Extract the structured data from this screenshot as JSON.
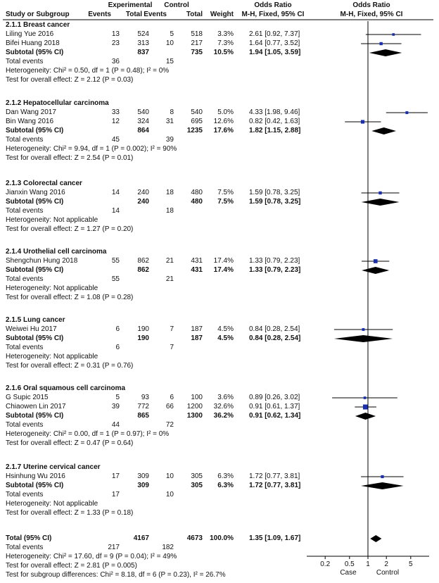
{
  "header": {
    "experimental": "Experimental",
    "control": "Control",
    "odds_ratio": "Odds Ratio",
    "study": "Study or Subgroup",
    "events": "Events",
    "total": "Total",
    "weight": "Weight",
    "method": "M-H, Fixed, 95% CI"
  },
  "groups": [
    {
      "title": "2.1.1 Breast cancer",
      "studies": [
        {
          "name": "Liling Yue 2016",
          "e_events": "13",
          "e_total": "524",
          "c_events": "5",
          "c_total": "518",
          "weight": "3.3%",
          "ci": "2.61 [0.92, 7.37]",
          "or": 2.61,
          "lo": 0.92,
          "hi": 7.37,
          "w": 3.3
        },
        {
          "name": "Bifei Huang 2018",
          "e_events": "23",
          "e_total": "313",
          "c_events": "10",
          "c_total": "217",
          "weight": "7.3%",
          "ci": "1.64 [0.77, 3.52]",
          "or": 1.64,
          "lo": 0.77,
          "hi": 3.52,
          "w": 7.3
        }
      ],
      "subtotal": {
        "label": "Subtotal (95% CI)",
        "e_total": "837",
        "c_total": "735",
        "weight": "10.5%",
        "ci": "1.94 [1.05, 3.59]",
        "or": 1.94,
        "lo": 1.05,
        "hi": 3.59
      },
      "total_events": {
        "label": "Total events",
        "e": "36",
        "c": "15"
      },
      "heterogeneity": "Heterogeneity: Chi² = 0.50, df = 1 (P = 0.48); I² = 0%",
      "overall": "Test for overall effect: Z = 2.12 (P = 0.03)"
    },
    {
      "title": "2.1.2 Hepatocellular carcinoma",
      "studies": [
        {
          "name": "Dan Wang 2017",
          "e_events": "33",
          "e_total": "540",
          "c_events": "8",
          "c_total": "540",
          "weight": "5.0%",
          "ci": "4.33 [1.98, 9.46]",
          "or": 4.33,
          "lo": 1.98,
          "hi": 9.46,
          "w": 5.0
        },
        {
          "name": "Bin Wang 2016",
          "e_events": "12",
          "e_total": "324",
          "c_events": "31",
          "c_total": "695",
          "weight": "12.6%",
          "ci": "0.82 [0.42, 1.63]",
          "or": 0.82,
          "lo": 0.42,
          "hi": 1.63,
          "w": 12.6
        }
      ],
      "subtotal": {
        "label": "Subtotal (95% CI)",
        "e_total": "864",
        "c_total": "1235",
        "weight": "17.6%",
        "ci": "1.82 [1.15, 2.88]",
        "or": 1.82,
        "lo": 1.15,
        "hi": 2.88
      },
      "total_events": {
        "label": "Total events",
        "e": "45",
        "c": "39"
      },
      "heterogeneity": "Heterogeneity: Chi² = 9.94, df = 1 (P = 0.002); I² = 90%",
      "overall": "Test for overall effect: Z = 2.54 (P = 0.01)"
    },
    {
      "title": "2.1.3 Colorectal cancer",
      "studies": [
        {
          "name": "Jianxin Wang 2016",
          "e_events": "14",
          "e_total": "240",
          "c_events": "18",
          "c_total": "480",
          "weight": "7.5%",
          "ci": "1.59 [0.78, 3.25]",
          "or": 1.59,
          "lo": 0.78,
          "hi": 3.25,
          "w": 7.5
        }
      ],
      "subtotal": {
        "label": "Subtotal (95% CI)",
        "e_total": "240",
        "c_total": "480",
        "weight": "7.5%",
        "ci": "1.59 [0.78, 3.25]",
        "or": 1.59,
        "lo": 0.78,
        "hi": 3.25
      },
      "total_events": {
        "label": "Total events",
        "e": "14",
        "c": "18"
      },
      "heterogeneity": "Heterogeneity: Not applicable",
      "overall": "Test for overall effect: Z = 1.27 (P = 0.20)"
    },
    {
      "title": "2.1.4 Urothelial cell carcinoma",
      "studies": [
        {
          "name": "Shengchun Hung 2018",
          "e_events": "55",
          "e_total": "862",
          "c_events": "21",
          "c_total": "431",
          "weight": "17.4%",
          "ci": "1.33 [0.79, 2.23]",
          "or": 1.33,
          "lo": 0.79,
          "hi": 2.23,
          "w": 17.4
        }
      ],
      "subtotal": {
        "label": "Subtotal (95% CI)",
        "e_total": "862",
        "c_total": "431",
        "weight": "17.4%",
        "ci": "1.33 [0.79, 2.23]",
        "or": 1.33,
        "lo": 0.79,
        "hi": 2.23
      },
      "total_events": {
        "label": "Total events",
        "e": "55",
        "c": "21"
      },
      "heterogeneity": "Heterogeneity: Not applicable",
      "overall": "Test for overall effect: Z = 1.08 (P = 0.28)"
    },
    {
      "title": "2.1.5 Lung cancer",
      "studies": [
        {
          "name": "Weiwei Hu 2017",
          "e_events": "6",
          "e_total": "190",
          "c_events": "7",
          "c_total": "187",
          "weight": "4.5%",
          "ci": "0.84 [0.28, 2.54]",
          "or": 0.84,
          "lo": 0.28,
          "hi": 2.54,
          "w": 4.5
        }
      ],
      "subtotal": {
        "label": "Subtotal (95% CI)",
        "e_total": "190",
        "c_total": "187",
        "weight": "4.5%",
        "ci": "0.84 [0.28, 2.54]",
        "or": 0.84,
        "lo": 0.28,
        "hi": 2.54
      },
      "total_events": {
        "label": "Total events",
        "e": "6",
        "c": "7"
      },
      "heterogeneity": "Heterogeneity: Not applicable",
      "overall": "Test for overall effect: Z = 0.31 (P = 0.76)"
    },
    {
      "title": "2.1.6 Oral squamous cell carcinoma",
      "studies": [
        {
          "name": "G Supic 2015",
          "e_events": "5",
          "e_total": "93",
          "c_events": "6",
          "c_total": "100",
          "weight": "3.6%",
          "ci": "0.89 [0.26, 3.02]",
          "or": 0.89,
          "lo": 0.26,
          "hi": 3.02,
          "w": 3.6
        },
        {
          "name": "Chiaowen Lin 2017",
          "e_events": "39",
          "e_total": "772",
          "c_events": "66",
          "c_total": "1200",
          "weight": "32.6%",
          "ci": "0.91 [0.61, 1.37]",
          "or": 0.91,
          "lo": 0.61,
          "hi": 1.37,
          "w": 32.6
        }
      ],
      "subtotal": {
        "label": "Subtotal (95% CI)",
        "e_total": "865",
        "c_total": "1300",
        "weight": "36.2%",
        "ci": "0.91 [0.62, 1.34]",
        "or": 0.91,
        "lo": 0.62,
        "hi": 1.34
      },
      "total_events": {
        "label": "Total events",
        "e": "44",
        "c": "72"
      },
      "heterogeneity": "Heterogeneity: Chi² = 0.00, df = 1 (P = 0.97); I² = 0%",
      "overall": "Test for overall effect: Z = 0.47 (P = 0.64)"
    },
    {
      "title": "2.1.7 Uterine cervical cancer",
      "studies": [
        {
          "name": "Hsinhung Wu 2016",
          "e_events": "17",
          "e_total": "309",
          "c_events": "10",
          "c_total": "305",
          "weight": "6.3%",
          "ci": "1.72 [0.77, 3.81]",
          "or": 1.72,
          "lo": 0.77,
          "hi": 3.81,
          "w": 6.3
        }
      ],
      "subtotal": {
        "label": "Subtotal (95% CI)",
        "e_total": "309",
        "c_total": "305",
        "weight": "6.3%",
        "ci": "1.72 [0.77, 3.81]",
        "or": 1.72,
        "lo": 0.77,
        "hi": 3.81
      },
      "total_events": {
        "label": "Total events",
        "e": "17",
        "c": "10"
      },
      "heterogeneity": "Heterogeneity: Not applicable",
      "overall": "Test for overall effect: Z = 1.33 (P = 0.18)"
    }
  ],
  "total": {
    "label": "Total (95% CI)",
    "e_total": "4167",
    "c_total": "4673",
    "weight": "100.0%",
    "ci": "1.35 [1.09, 1.67]",
    "or": 1.35,
    "lo": 1.09,
    "hi": 1.67
  },
  "total_events": {
    "label": "Total events",
    "e": "217",
    "c": "182"
  },
  "total_heterogeneity": "Heterogeneity: Chi² = 17.60, df = 9 (P = 0.04); I² = 49%",
  "total_overall": "Test for overall effect: Z = 2.81 (P = 0.005)",
  "subgroup_diff": "Test for subgroup differences: Chi² = 8.18, df = 6 (P = 0.23), I² = 26.7%",
  "chart_data": {
    "type": "forest",
    "title": "Odds Ratio M-H, Fixed, 95% CI",
    "scale": "log",
    "xlim": [
      0.1,
      10
    ],
    "ticks": [
      "0.2",
      "0.5",
      "1",
      "2",
      "5"
    ],
    "xlabel_left": "Case",
    "xlabel_right": "Control",
    "null_line": 1,
    "colors": {
      "marker": "#1a2fb0",
      "diamond": "#000000",
      "ci_line": "#000000"
    }
  }
}
